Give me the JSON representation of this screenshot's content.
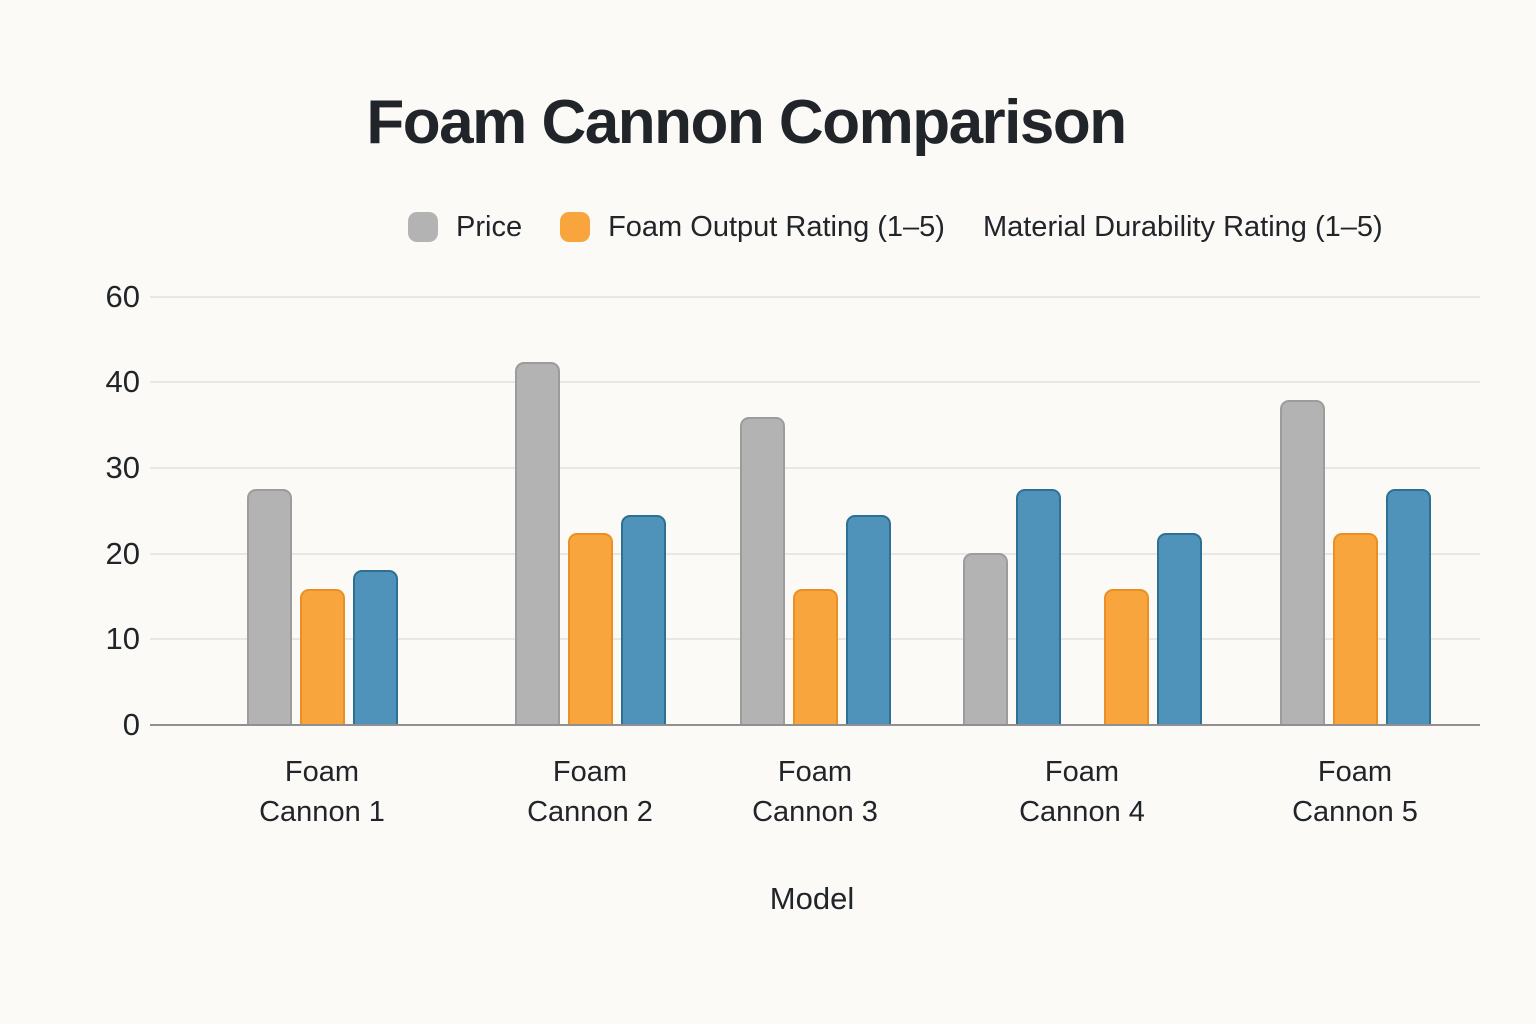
{
  "chart_data": {
    "type": "bar",
    "title": "Foam Cannon Comparison",
    "xlabel": "Model",
    "ylabel": "",
    "legend_position": "top",
    "grid": true,
    "y_axis": {
      "tick_labels": [
        "60",
        "40",
        "30",
        "20",
        "10",
        "0"
      ]
    },
    "categories": [
      "Foam Cannon 1",
      "Foam Cannon 2",
      "Foam Cannon 3",
      "Foam Cannon 4",
      "Foam Cannon 5"
    ],
    "series": {
      "price": {
        "name": "Price",
        "fill": "#b3b3b3",
        "border": "#9c9c9c"
      },
      "foam": {
        "name": "Foam Output Rating (1–5)",
        "fill": "#f9a53d",
        "border": "#e98f24"
      },
      "durability": {
        "name": "Material Durability Rating (1–5)",
        "fill": "#4f93ba",
        "border": "#2e6f94"
      }
    },
    "groups": [
      {
        "label_lines": [
          "Foam",
          "Cannon 1"
        ],
        "bars": [
          {
            "series": "price",
            "value": 27.4
          },
          {
            "series": "foam",
            "value": 15.8
          },
          {
            "series": "durability",
            "value": 18.0
          }
        ]
      },
      {
        "label_lines": [
          "Foam",
          "Cannon 2"
        ],
        "bars": [
          {
            "series": "price",
            "value": 42.2
          },
          {
            "series": "foam",
            "value": 22.3
          },
          {
            "series": "durability",
            "value": 24.4
          }
        ]
      },
      {
        "label_lines": [
          "Foam",
          "Cannon 3"
        ],
        "bars": [
          {
            "series": "price",
            "value": 35.8
          },
          {
            "series": "foam",
            "value": 15.8
          },
          {
            "series": "durability",
            "value": 24.4
          }
        ]
      },
      {
        "label_lines": [
          "Foam",
          "Cannon 4"
        ],
        "bars": [
          {
            "series": "price",
            "value": 20.0
          },
          {
            "series": "durability",
            "value": 27.4
          },
          {
            "series": "foam",
            "value": 15.8,
            "gap_before": true
          },
          {
            "series": "durability",
            "value": 22.3
          }
        ]
      },
      {
        "label_lines": [
          "Foam",
          "Cannon 5"
        ],
        "bars": [
          {
            "series": "price",
            "value": 37.8
          },
          {
            "series": "foam",
            "value": 22.3
          },
          {
            "series": "durability",
            "value": 27.4
          }
        ]
      }
    ]
  },
  "legend": {
    "items": [
      {
        "label": "Price",
        "swatch": "#b3b3b3"
      },
      {
        "label": "Foam Output Rating (1–5)",
        "swatch": "#f9a53d"
      },
      {
        "label": "Material Durability Rating (1–5)",
        "swatch": null
      }
    ]
  },
  "colors": {
    "background": "#fbfaf7",
    "text": "#212529",
    "gridline": "#e8e7e4",
    "baseline": "#8f908f"
  }
}
